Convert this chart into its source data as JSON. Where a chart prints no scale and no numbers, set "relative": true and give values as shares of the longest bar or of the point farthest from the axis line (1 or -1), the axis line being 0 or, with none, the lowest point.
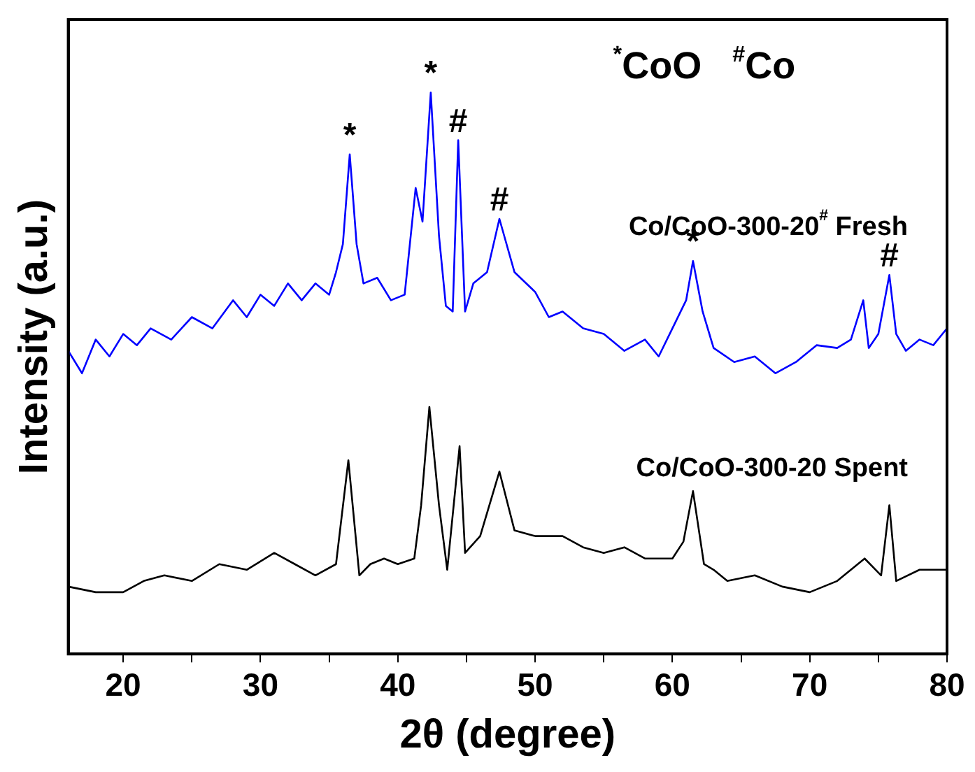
{
  "chart_data": {
    "type": "line",
    "relative": true,
    "xlabel": "2θ (degree)",
    "ylabel": "Intensity (a.u.)",
    "xlim": [
      16,
      80
    ],
    "xticks": [
      20,
      {
        "value": 25,
        "label": null
      },
      30,
      {
        "value": 35,
        "label": null
      },
      40,
      {
        "value": 45,
        "label": null
      },
      50,
      {
        "value": 55,
        "label": null
      },
      60,
      {
        "value": 65,
        "label": null
      },
      70,
      {
        "value": 75,
        "label": null
      },
      80
    ],
    "grid": false,
    "legend": false,
    "marker": "none",
    "line_style": "solid",
    "series": [
      {
        "name": "Co/CoO-300-20$^{#}$ Fresh",
        "color": "#0000ff",
        "x": [
          16,
          17,
          18,
          19,
          20,
          21,
          22,
          23.5,
          25,
          26.5,
          28,
          29,
          30,
          31,
          32,
          33,
          34,
          35,
          35.5,
          36,
          36.5,
          37,
          37.5,
          38.5,
          39.5,
          40.5,
          41.3,
          41.8,
          42.4,
          43,
          43.5,
          44,
          44.4,
          44.9,
          45.5,
          46.5,
          47.4,
          48.5,
          50,
          51,
          52,
          53.5,
          55,
          56.5,
          58,
          59,
          60,
          61,
          61.5,
          62.2,
          63,
          64.5,
          66,
          67.5,
          69,
          70.5,
          72,
          73,
          73.9,
          74.3,
          75,
          75.8,
          76.3,
          77,
          78,
          79,
          80
        ],
        "values": [
          0.54,
          0.5,
          0.56,
          0.53,
          0.57,
          0.55,
          0.58,
          0.56,
          0.6,
          0.58,
          0.63,
          0.6,
          0.64,
          0.62,
          0.66,
          0.63,
          0.66,
          0.64,
          0.68,
          0.73,
          0.89,
          0.73,
          0.66,
          0.67,
          0.63,
          0.64,
          0.83,
          0.77,
          1.0,
          0.745,
          0.62,
          0.61,
          0.915,
          0.61,
          0.66,
          0.68,
          0.775,
          0.68,
          0.645,
          0.6,
          0.61,
          0.58,
          0.57,
          0.54,
          0.56,
          0.53,
          0.58,
          0.63,
          0.7,
          0.61,
          0.545,
          0.52,
          0.53,
          0.5,
          0.52,
          0.55,
          0.545,
          0.56,
          0.63,
          0.545,
          0.57,
          0.675,
          0.57,
          0.54,
          0.56,
          0.55,
          0.58
        ]
      },
      {
        "name": "Co/CoO-300-20 Spent",
        "color": "#000000",
        "x": [
          16,
          18,
          20,
          21.5,
          23,
          25,
          27,
          29,
          31,
          32.5,
          34,
          35.5,
          36.4,
          37.2,
          38,
          39,
          40,
          41.2,
          41.7,
          42.3,
          43,
          43.6,
          44.5,
          44.9,
          46,
          47.4,
          48.5,
          50,
          52,
          53.5,
          55,
          56.5,
          58,
          60,
          60.8,
          61.5,
          62.3,
          63,
          64,
          66,
          68,
          70,
          72,
          74,
          75.2,
          75.8,
          76.3,
          78,
          80
        ],
        "values": [
          0.12,
          0.11,
          0.11,
          0.13,
          0.14,
          0.13,
          0.16,
          0.15,
          0.18,
          0.16,
          0.14,
          0.16,
          0.345,
          0.14,
          0.16,
          0.17,
          0.16,
          0.17,
          0.265,
          0.44,
          0.265,
          0.15,
          0.37,
          0.18,
          0.21,
          0.325,
          0.22,
          0.21,
          0.21,
          0.19,
          0.18,
          0.19,
          0.17,
          0.17,
          0.2,
          0.29,
          0.16,
          0.15,
          0.13,
          0.14,
          0.12,
          0.11,
          0.13,
          0.17,
          0.14,
          0.265,
          0.13,
          0.15,
          0.15
        ]
      }
    ],
    "annotations": [
      {
        "text": "*",
        "x": 36.5,
        "y": 0.89
      },
      {
        "text": "*",
        "x": 42.4,
        "y": 1.0
      },
      {
        "text": "#",
        "x": 44.4,
        "y": 0.915
      },
      {
        "text": "#",
        "x": 47.4,
        "y": 0.775
      },
      {
        "text": "*",
        "x": 61.5,
        "y": 0.7
      },
      {
        "text": "#",
        "x": 75.8,
        "y": 0.675
      },
      "$^{*}$CoO",
      "$^{#}$Co"
    ]
  }
}
